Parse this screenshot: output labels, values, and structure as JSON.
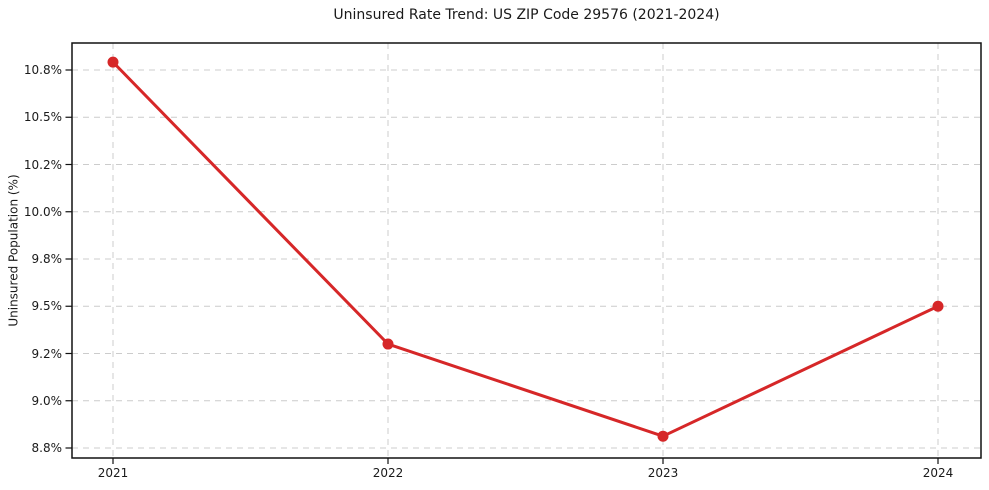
{
  "chart_data": {
    "type": "line",
    "title": "Uninsured Rate Trend: US ZIP Code 29576 (2021-2024)",
    "xlabel": "",
    "ylabel": "Uninsured Population (%)",
    "x": [
      "2021",
      "2022",
      "2023",
      "2024"
    ],
    "values": [
      10.85,
      9.26,
      8.85,
      9.5
    ],
    "x_tick_labels": [
      "2021",
      "2022",
      "2023",
      "2024"
    ],
    "y_tick_values": [
      10.8,
      10.5,
      10.2,
      10.0,
      9.8,
      9.5,
      9.2,
      9.0,
      8.8
    ],
    "y_tick_labels": [
      "10.8%",
      "10.5%",
      "10.2%",
      "10.0%",
      "9.8%",
      "9.5%",
      "9.2%",
      "9.0%",
      "8.8%"
    ],
    "grid": true,
    "grid_style": "dashed",
    "legend": false,
    "line_color": "#d62728",
    "marker": "o",
    "grid_color": "#cccccc",
    "axis_color": "#111111",
    "text_color": "#1a1a1a",
    "background": "#ffffff"
  }
}
